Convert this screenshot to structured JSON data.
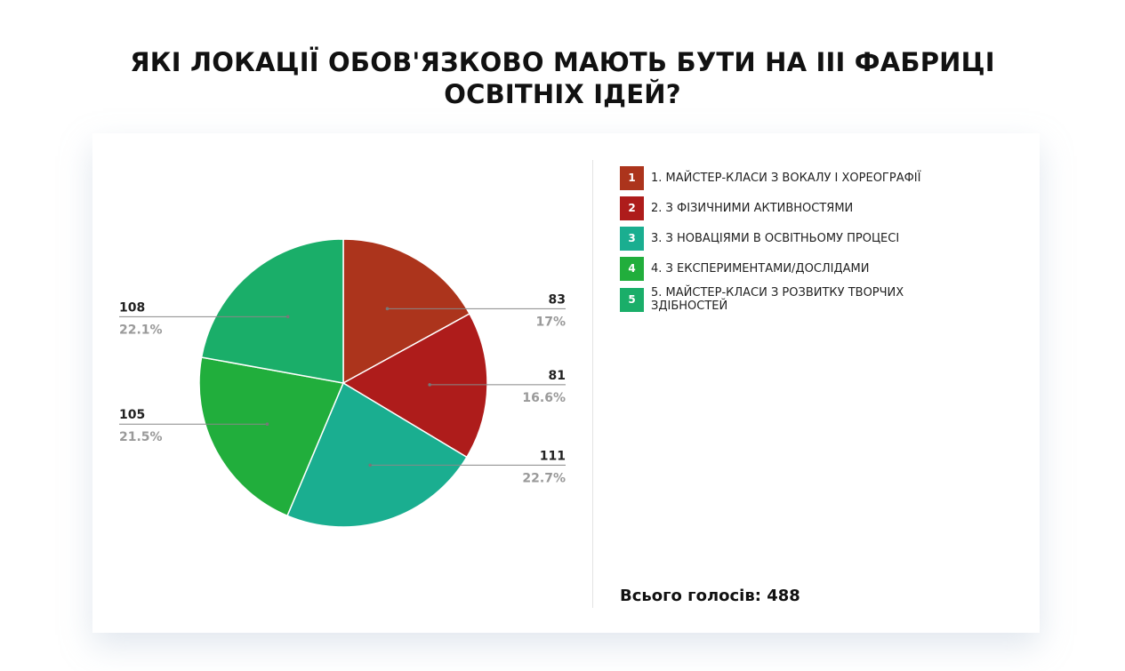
{
  "page": {
    "title": "ЯКІ ЛОКАЦІЇ ОБОВ'ЯЗКОВО МАЮТЬ БУТИ НА ІІІ ФАБРИЦІ ОСВІТНІХ ІДЕЙ?",
    "total_text": "Всього голосів: 488"
  },
  "legend": [
    {
      "number": "1",
      "label": "1. МАЙСТЕР-КЛАСИ З ВОКАЛУ І ХОРЕОГРАФІЇ",
      "color": "#AC341C"
    },
    {
      "number": "2",
      "label": "2. З ФІЗИЧНИМИ АКТИВНОСТЯМИ",
      "color": "#AE1C1B"
    },
    {
      "number": "3",
      "label": "3. З НОВАЦІЯМИ В ОСВІТНЬОМУ ПРОЦЕСІ",
      "color": "#1AAE90"
    },
    {
      "number": "4",
      "label": "4. З ЕКСПЕРИМЕНТАМИ/ДОСЛІДАМИ",
      "color": "#21AE3C"
    },
    {
      "number": "5",
      "label": "5. МАЙСТЕР-КЛАСИ З РОЗВИТКУ ТВОРЧИХ ЗДІБНОСТЕЙ",
      "color": "#1AAE69"
    }
  ],
  "chart_data": {
    "type": "pie",
    "categories": [
      "1. МАЙСТЕР-КЛАСИ З ВОКАЛУ І ХОРЕОГРАФІЇ",
      "2. З ФІЗИЧНИМИ АКТИВНОСТЯМИ",
      "3. З НОВАЦІЯМИ В ОСВІТНЬОМУ ПРОЦЕСІ",
      "4. З ЕКСПЕРИМЕНТАМИ/ДОСЛІДАМИ",
      "5. МАЙСТЕР-КЛАСИ З РОЗВИТКУ ТВОРЧИХ ЗДІБНОСТЕЙ"
    ],
    "values": [
      83,
      81,
      111,
      105,
      108
    ],
    "value_labels": [
      "83",
      "81",
      "111",
      "105",
      "108"
    ],
    "percent_labels": [
      "17%",
      "16.6%",
      "22.7%",
      "21.5%",
      "22.1%"
    ],
    "colors": [
      "#AC341C",
      "#AE1C1B",
      "#1AAE90",
      "#21AE3C",
      "#1AAE69"
    ],
    "total": 488,
    "legend_position": "right"
  }
}
